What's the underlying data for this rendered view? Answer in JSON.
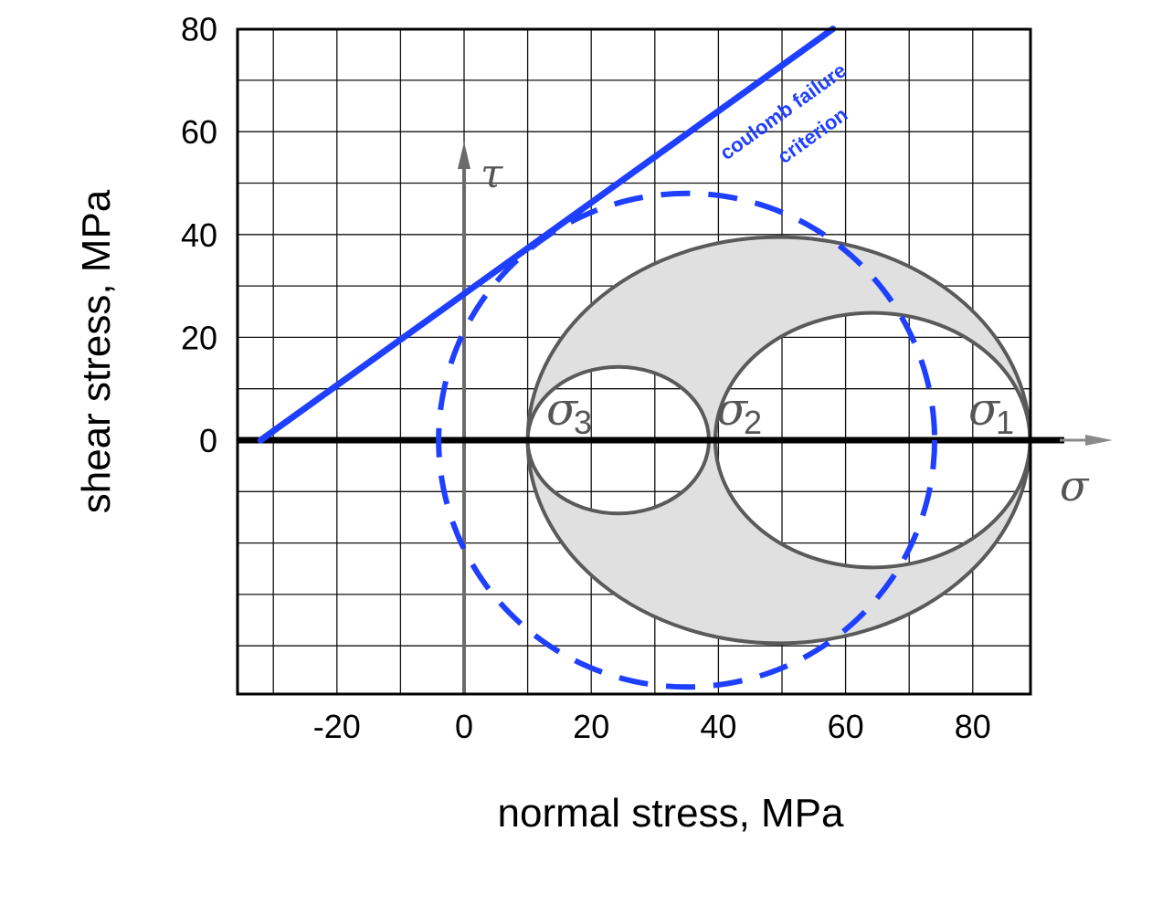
{
  "chart_data": {
    "type": "scatter",
    "title": "",
    "xlabel": "normal stress, MPa",
    "ylabel": "shear stress, MPa",
    "xlim": [
      -35,
      90
    ],
    "ylim": [
      -48,
      80
    ],
    "x_ticks": [
      -20,
      0,
      20,
      40,
      60,
      80
    ],
    "x_tick_labels": [
      "-20",
      "0",
      "20",
      "40",
      "60",
      "80"
    ],
    "y_ticks": [
      0,
      20,
      40,
      60,
      80
    ],
    "y_tick_labels": [
      "0",
      "20",
      "40",
      "60",
      "80"
    ],
    "grid": true,
    "mohr_circles": [
      {
        "name": "σ3–σ2",
        "from": 10,
        "to": 38.5,
        "style": "solid gray"
      },
      {
        "name": "σ2–σ1",
        "from": 39.5,
        "to": 89,
        "style": "solid gray"
      },
      {
        "name": "σ3–σ1",
        "from": 10,
        "to": 89,
        "style": "solid gray, shaded between circles"
      },
      {
        "name": "",
        "center": 35,
        "radius": 39,
        "style": "dashed blue"
      }
    ],
    "principal_stresses": [
      {
        "label": "σ",
        "subscript": "3",
        "x": 10
      },
      {
        "label": "σ",
        "subscript": "2",
        "x": 39
      },
      {
        "label": "σ",
        "subscript": "1",
        "x": 89
      }
    ],
    "failure_line": {
      "label": "coulomb failure criterion",
      "label_lines": [
        "coulomb failure",
        "criterion"
      ],
      "x": [
        -32,
        58
      ],
      "y": [
        0,
        80
      ]
    },
    "axis_symbols": {
      "tau": "τ",
      "sigma": "σ"
    },
    "colors": {
      "failure": "#1f3fff",
      "circle": "#5a5a5a",
      "shade": "#e0e0e0"
    }
  }
}
